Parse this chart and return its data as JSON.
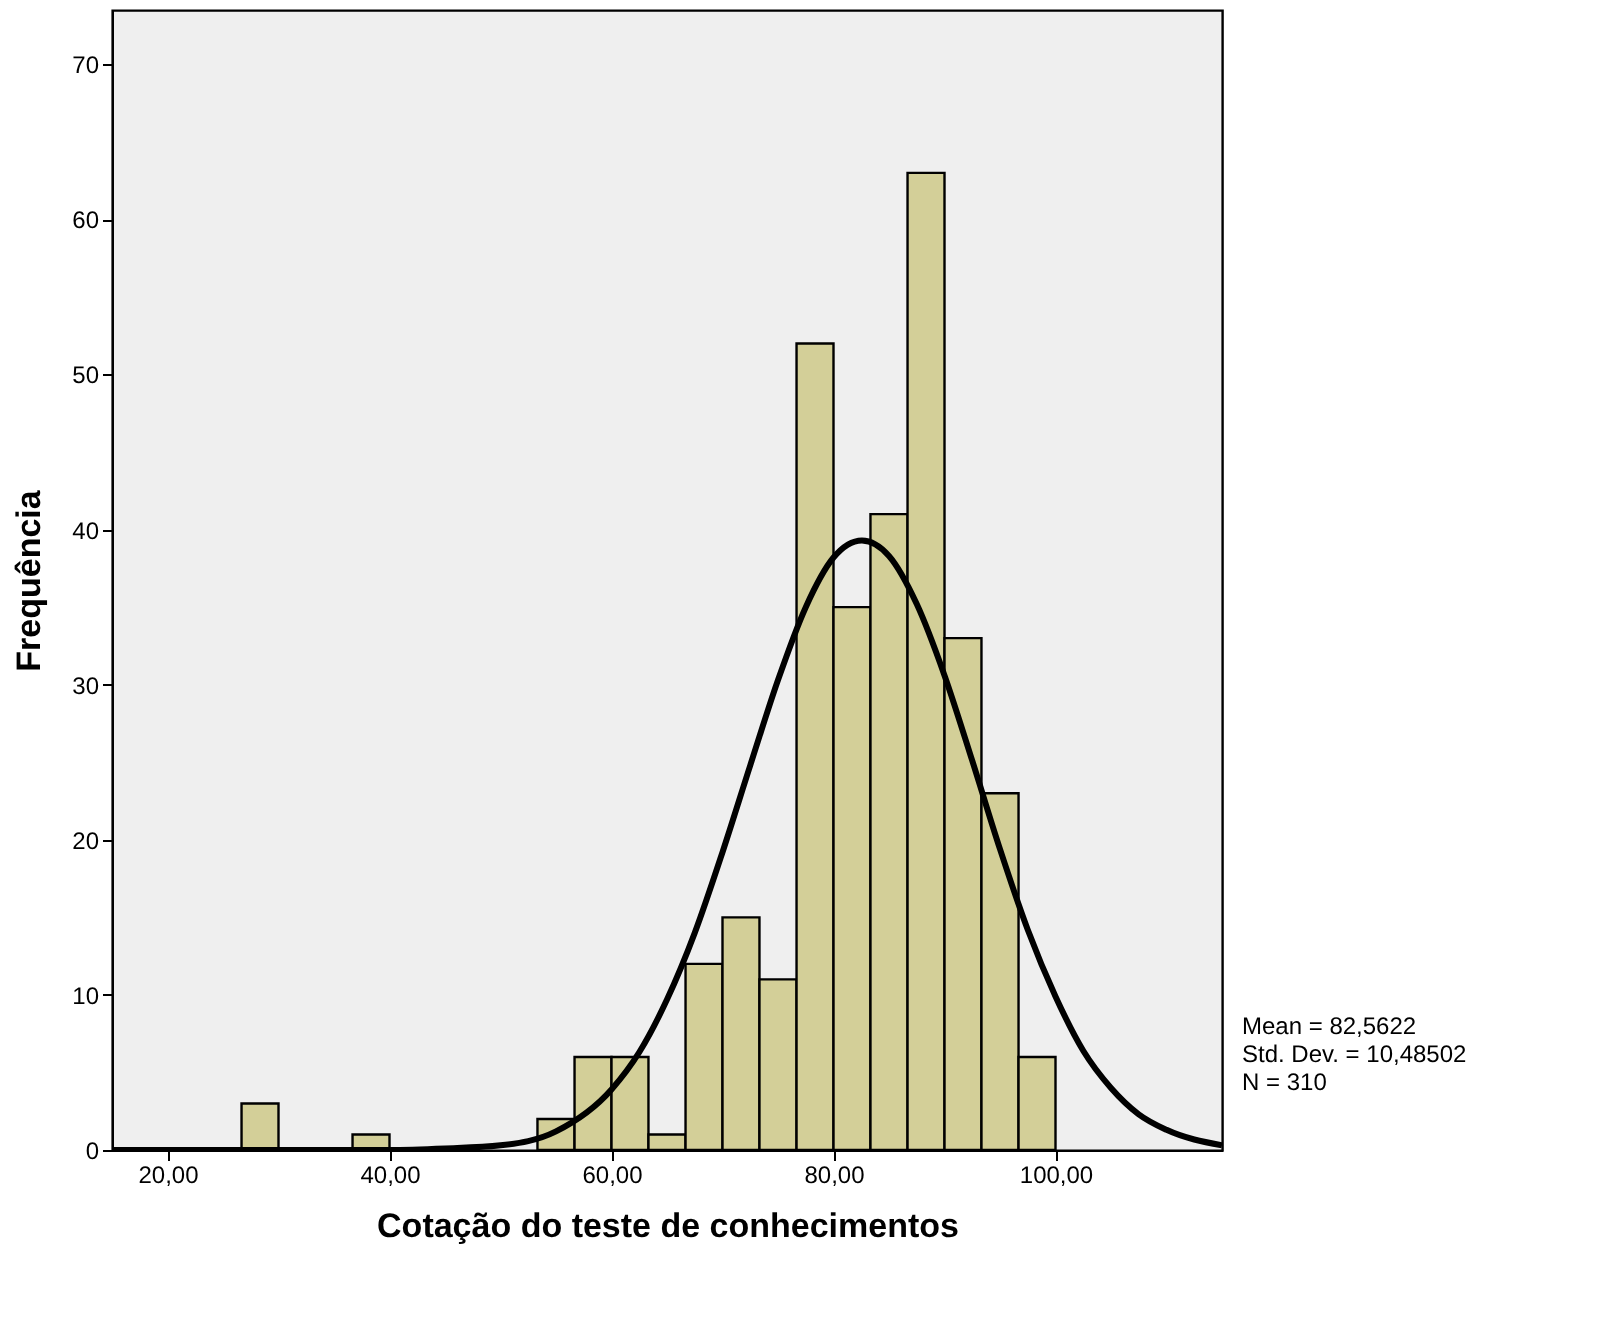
{
  "chart_data": {
    "type": "histogram",
    "xlabel": "Cotação do teste de conhecimentos",
    "ylabel": "Frequência",
    "bins": [
      26.67,
      30,
      33.33,
      36.67,
      40,
      43.33,
      46.67,
      50,
      53.33,
      56.67,
      60,
      63.33,
      66.67,
      70,
      73.33,
      76.67,
      80,
      83.33,
      86.67,
      90,
      93.33,
      96.67,
      100
    ],
    "values": [
      3,
      0,
      0,
      1,
      0,
      0,
      0,
      0,
      2,
      6,
      6,
      1,
      12,
      15,
      11,
      52,
      35,
      41,
      63,
      33,
      23,
      6
    ],
    "color": "#d3cf98",
    "series": [
      {
        "type": "line",
        "color": "#000000",
        "x": [
          15,
          40,
          45,
          50,
          55,
          60,
          62.5,
          65,
          67.5,
          70,
          72.5,
          75,
          77.5,
          80,
          82.56,
          85,
          87.5,
          90,
          92.5,
          95,
          97.5,
          100,
          102.5,
          105,
          107.5,
          110,
          115
        ],
        "values": [
          0,
          0,
          0.1,
          0.3,
          1.2,
          3.9,
          6.3,
          9.7,
          14,
          19.2,
          24.8,
          30.3,
          35,
          38.2,
          39.3,
          38.3,
          35.2,
          30.6,
          25.1,
          19.4,
          14.2,
          9.9,
          6.4,
          4,
          2.3,
          1.3,
          0.3
        ]
      }
    ],
    "xlim": [
      15,
      115
    ],
    "xticks": [
      {
        "value": 20,
        "label": "20,00"
      },
      {
        "value": 40,
        "label": "40,00"
      },
      {
        "value": 60,
        "label": "60,00"
      },
      {
        "value": 80,
        "label": "80,00"
      },
      {
        "value": 100,
        "label": "100,00"
      }
    ],
    "ylim": [
      0,
      73.5
    ],
    "yticks": [
      0,
      10,
      20,
      30,
      40,
      50,
      60,
      70
    ],
    "grid": false,
    "annotations": [
      "Mean = 82,5622",
      "Std. Dev. = 10,48502",
      "N = 310"
    ]
  }
}
